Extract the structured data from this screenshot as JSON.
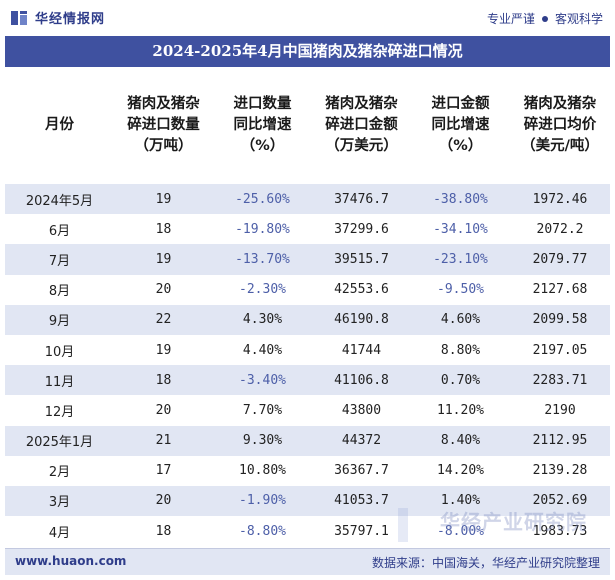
{
  "brand": {
    "name": "华经情报网",
    "slogan_left": "专业严谨",
    "slogan_right": "客观科学"
  },
  "title": "2024-2025年4月中国猪肉及猪杂碎进口情况",
  "headers": [
    [
      "月份"
    ],
    [
      "猪肉及猪杂",
      "碎进口数量",
      "（万吨）"
    ],
    [
      "进口数量",
      "同比增速",
      "（%）"
    ],
    [
      "猪肉及猪杂",
      "碎进口金额",
      "（万美元）"
    ],
    [
      "进口金额",
      "同比增速",
      "（%）"
    ],
    [
      "猪肉及猪杂",
      "碎进口均价",
      "（美元/吨）"
    ]
  ],
  "rows": [
    [
      "2024年5月",
      "19",
      "-25.60%",
      "37476.7",
      "-38.80%",
      "1972.46"
    ],
    [
      "6月",
      "18",
      "-19.80%",
      "37299.6",
      "-34.10%",
      "2072.2"
    ],
    [
      "7月",
      "19",
      "-13.70%",
      "39515.7",
      "-23.10%",
      "2079.77"
    ],
    [
      "8月",
      "20",
      "-2.30%",
      "42553.6",
      "-9.50%",
      "2127.68"
    ],
    [
      "9月",
      "22",
      "4.30%",
      "46190.8",
      "4.60%",
      "2099.58"
    ],
    [
      "10月",
      "19",
      "4.40%",
      "41744",
      "8.80%",
      "2197.05"
    ],
    [
      "11月",
      "18",
      "-3.40%",
      "41106.8",
      "0.70%",
      "2283.71"
    ],
    [
      "12月",
      "20",
      "7.70%",
      "43800",
      "11.20%",
      "2190"
    ],
    [
      "2025年1月",
      "21",
      "9.30%",
      "44372",
      "8.40%",
      "2112.95"
    ],
    [
      "2月",
      "17",
      "10.80%",
      "36367.7",
      "14.20%",
      "2139.28"
    ],
    [
      "3月",
      "20",
      "-1.90%",
      "41053.7",
      "1.40%",
      "2052.69"
    ],
    [
      "4月",
      "18",
      "-8.80%",
      "35797.1",
      "-8.00%",
      "1983.73"
    ]
  ],
  "footer": {
    "url": "www.huaon.com",
    "source": "数据来源：中国海关，华经产业研究院整理"
  },
  "watermark": "华经产业研究院",
  "colors": {
    "title_bg": "#3f51a0",
    "row_alt": "#e1e6f3",
    "negative": "#4d5fa8",
    "brand": "#2f3d8a"
  }
}
